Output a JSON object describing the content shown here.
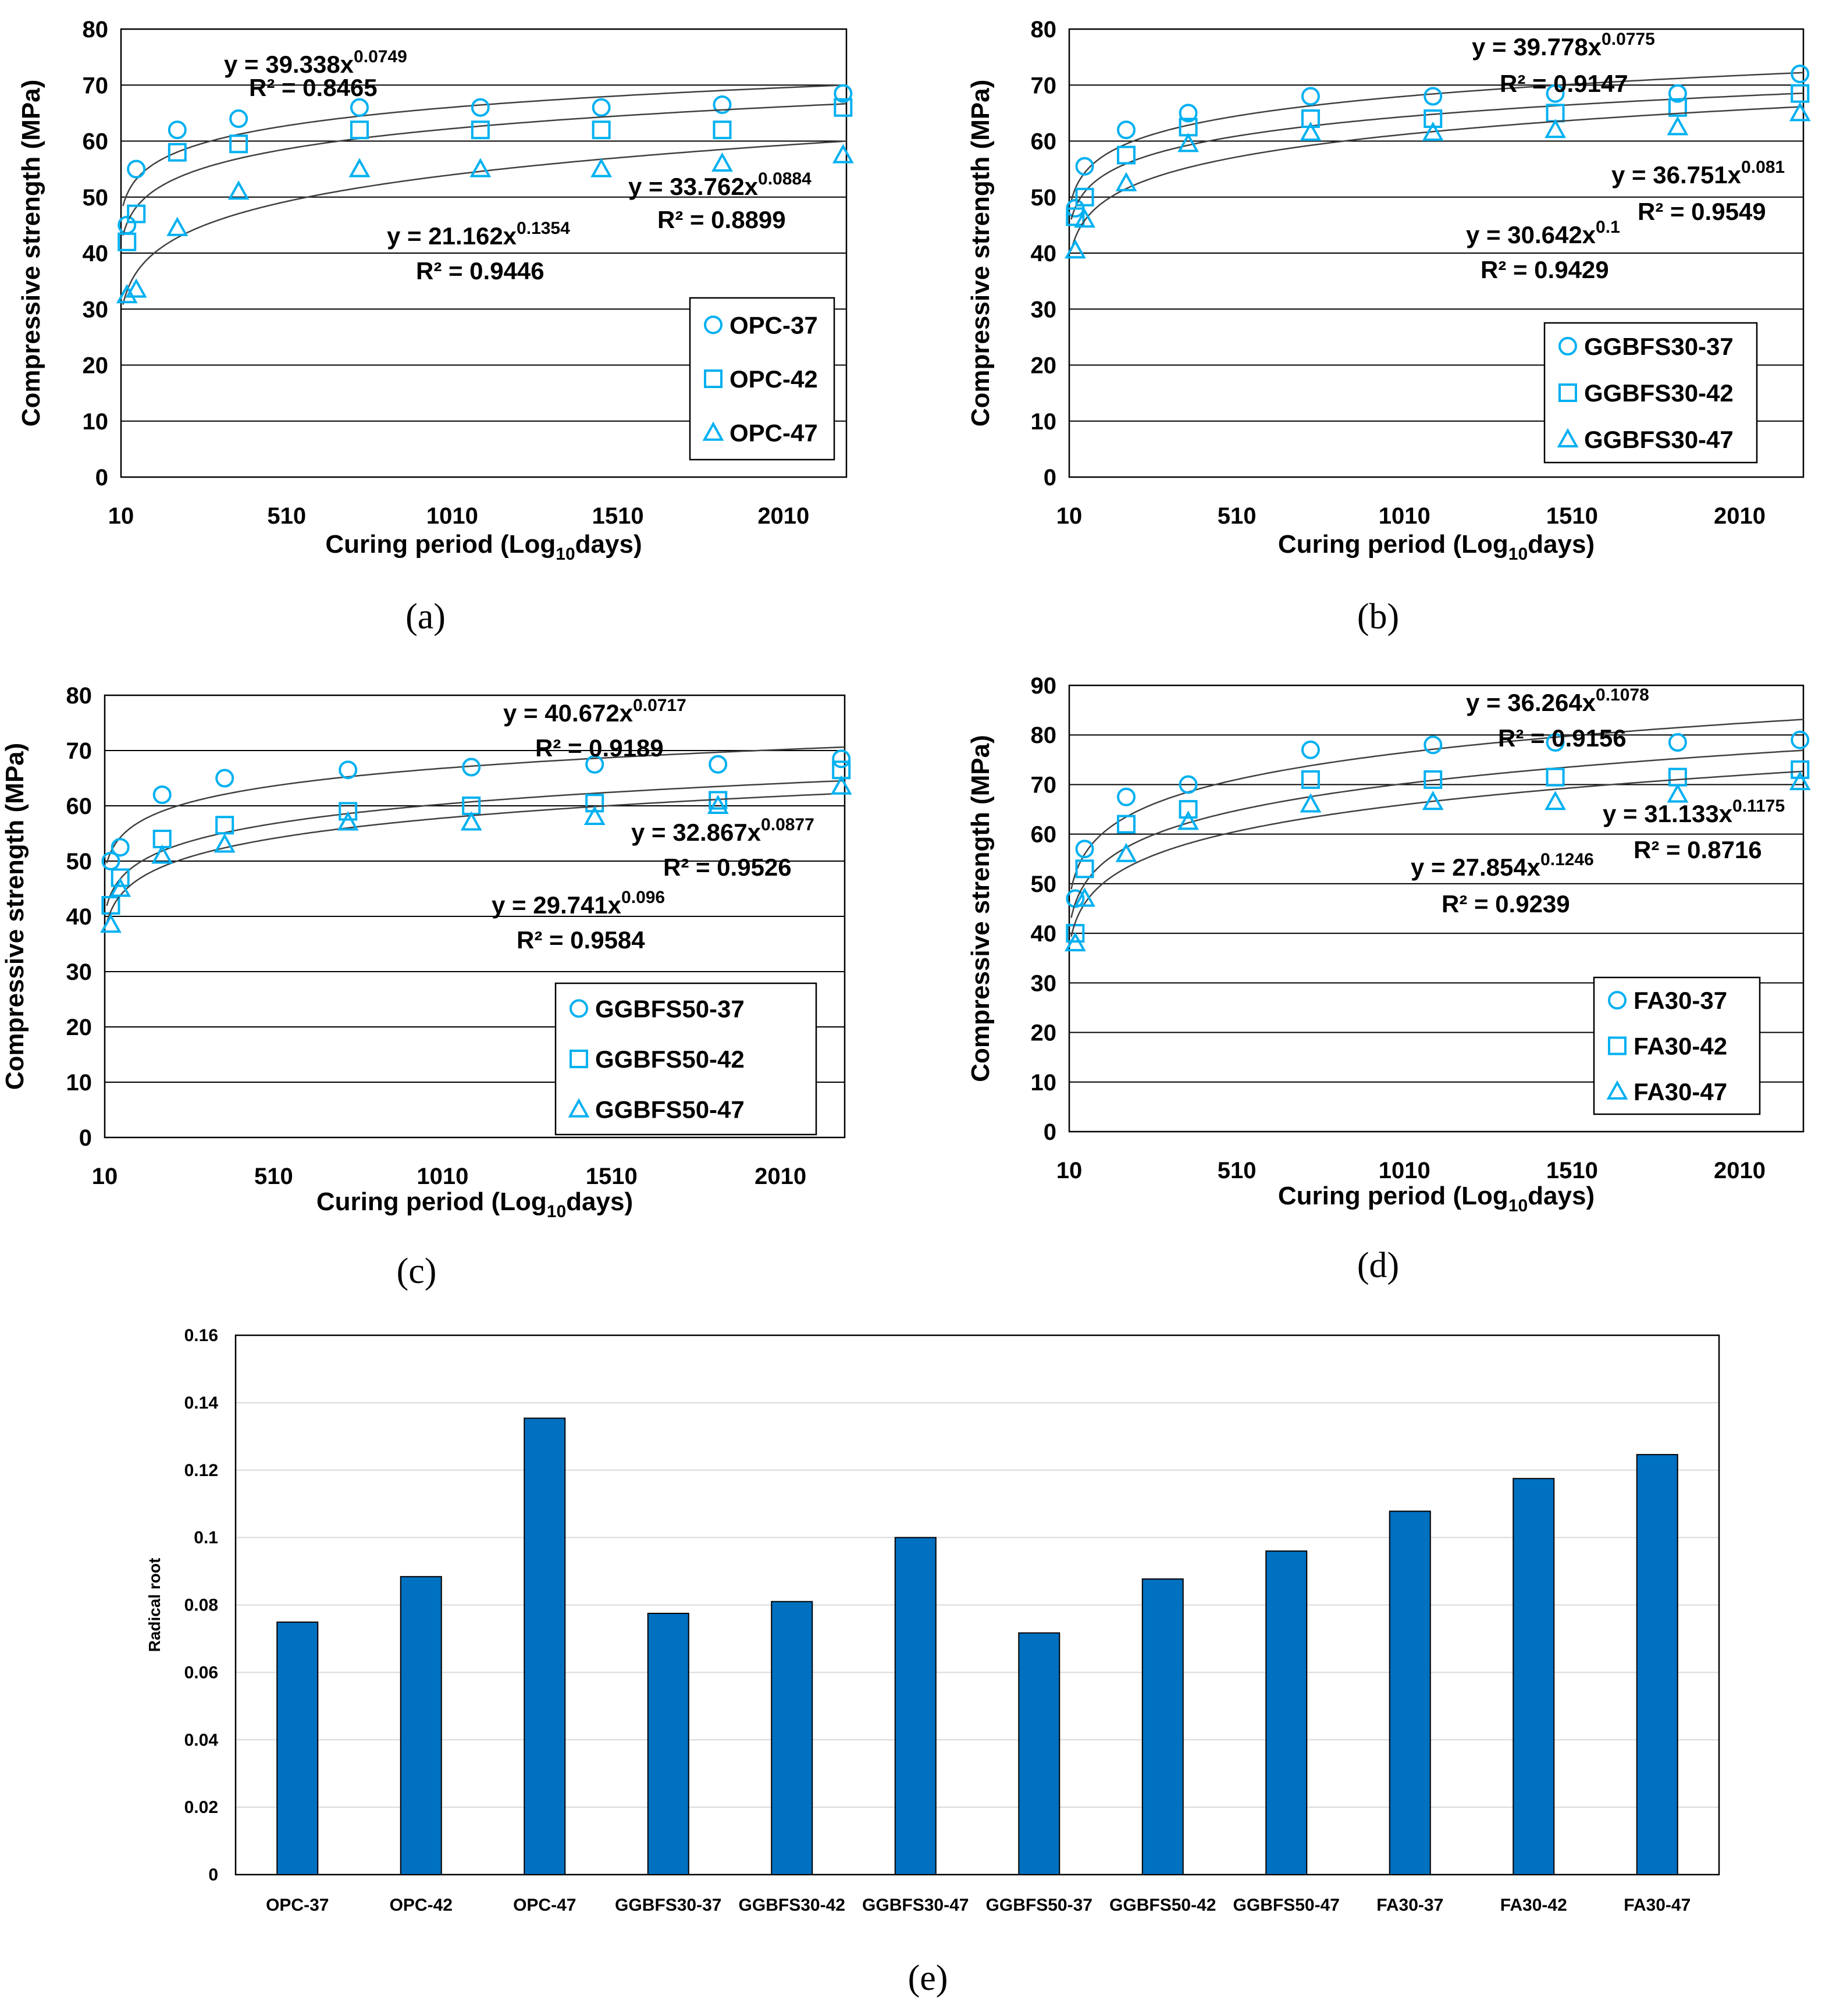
{
  "colors": {
    "marker": "#00B0F0",
    "bar": "#0070C0",
    "curve": "#404040",
    "grid": "#000000"
  },
  "chart_data": [
    {
      "type": "scatter",
      "caption_letter": "a",
      "ylabel": "Compressive strength (MPa)",
      "xlabel_pre": "Curing period (Log",
      "xlabel_sub": "10",
      "xlabel_post": "days)",
      "xlim": [
        10,
        2200
      ],
      "ylim": [
        0,
        80
      ],
      "xticks": [
        10,
        510,
        1010,
        1510,
        2010
      ],
      "yticks": [
        0,
        10,
        20,
        30,
        40,
        50,
        60,
        70,
        80
      ],
      "grid": true,
      "legend_position": "bottom-right",
      "series": [
        {
          "name": "OPC-37",
          "marker": "circle",
          "points": [
            [
              28,
              45
            ],
            [
              56,
              55
            ],
            [
              180,
              62
            ],
            [
              365,
              64
            ],
            [
              730,
              66
            ],
            [
              1095,
              66
            ],
            [
              1460,
              66
            ],
            [
              1825,
              66.5
            ],
            [
              2190,
              68.5
            ]
          ],
          "fit": {
            "a": 39.338,
            "b": 0.0749,
            "eq_pre": "y = 39.338x",
            "eq_exp": "0.0749",
            "r2": "R² = 0.8465"
          }
        },
        {
          "name": "OPC-42",
          "marker": "square",
          "points": [
            [
              28,
              42
            ],
            [
              56,
              47
            ],
            [
              180,
              58
            ],
            [
              365,
              59.5
            ],
            [
              730,
              62
            ],
            [
              1095,
              62
            ],
            [
              1460,
              62
            ],
            [
              1825,
              62
            ],
            [
              2190,
              66
            ]
          ],
          "fit": {
            "a": 33.762,
            "b": 0.0884,
            "eq_pre": "y = 33.762x",
            "eq_exp": "0.0884",
            "r2": "R² = 0.8899"
          }
        },
        {
          "name": "OPC-47",
          "marker": "triangle",
          "points": [
            [
              28,
              32.5
            ],
            [
              56,
              33.5
            ],
            [
              180,
              44.5
            ],
            [
              365,
              51
            ],
            [
              730,
              55
            ],
            [
              1095,
              55
            ],
            [
              1460,
              55
            ],
            [
              1825,
              56
            ],
            [
              2190,
              57.5
            ]
          ],
          "fit": {
            "a": 21.162,
            "b": 0.1354,
            "eq_pre": "y = 21.162x",
            "eq_exp": "0.1354",
            "r2": "R² = 0.9446"
          }
        }
      ]
    },
    {
      "type": "scatter",
      "caption_letter": "b",
      "ylabel": "Compressive strength (MPa)",
      "xlabel_pre": "Curing period (Log",
      "xlabel_sub": "10",
      "xlabel_post": "days)",
      "xlim": [
        10,
        2200
      ],
      "ylim": [
        0,
        80
      ],
      "xticks": [
        10,
        510,
        1010,
        1510,
        2010
      ],
      "yticks": [
        0,
        10,
        20,
        30,
        40,
        50,
        60,
        70,
        80
      ],
      "grid": true,
      "legend_position": "bottom-right",
      "series": [
        {
          "name": "GGBFS30-37",
          "marker": "circle",
          "points": [
            [
              28,
              48
            ],
            [
              56,
              55.5
            ],
            [
              180,
              62
            ],
            [
              365,
              65
            ],
            [
              730,
              68
            ],
            [
              1095,
              68
            ],
            [
              1460,
              68.5
            ],
            [
              1825,
              68.5
            ],
            [
              2190,
              72
            ]
          ],
          "fit": {
            "a": 39.778,
            "b": 0.0775,
            "eq_pre": "y = 39.778x",
            "eq_exp": "0.0775",
            "r2": "R² = 0.9147"
          }
        },
        {
          "name": "GGBFS30-42",
          "marker": "square",
          "points": [
            [
              28,
              46.5
            ],
            [
              56,
              50
            ],
            [
              180,
              57.5
            ],
            [
              365,
              62.5
            ],
            [
              730,
              64
            ],
            [
              1095,
              64
            ],
            [
              1460,
              65
            ],
            [
              1825,
              66
            ],
            [
              2190,
              68.5
            ]
          ],
          "fit": {
            "a": 36.751,
            "b": 0.081,
            "eq_pre": "y = 36.751x",
            "eq_exp": "0.081",
            "r2": "R² = 0.9549"
          }
        },
        {
          "name": "GGBFS30-47",
          "marker": "triangle",
          "points": [
            [
              28,
              40.5
            ],
            [
              56,
              46
            ],
            [
              180,
              52.5
            ],
            [
              365,
              59.5
            ],
            [
              730,
              61.5
            ],
            [
              1095,
              61.5
            ],
            [
              1460,
              62
            ],
            [
              1825,
              62.5
            ],
            [
              2190,
              65
            ]
          ],
          "fit": {
            "a": 30.642,
            "b": 0.1,
            "eq_pre": "y = 30.642x",
            "eq_exp": "0.1",
            "r2": "R² = 0.9429"
          }
        }
      ]
    },
    {
      "type": "scatter",
      "caption_letter": "c",
      "ylabel": "Compressive strength (MPa)",
      "xlabel_pre": "Curing period (Log",
      "xlabel_sub": "10",
      "xlabel_post": "days)",
      "xlim": [
        10,
        2200
      ],
      "ylim": [
        0,
        80
      ],
      "xticks": [
        10,
        510,
        1010,
        1510,
        2010
      ],
      "yticks": [
        0,
        10,
        20,
        30,
        40,
        50,
        60,
        70,
        80
      ],
      "grid": true,
      "legend_position": "bottom-right",
      "series": [
        {
          "name": "GGBFS50-37",
          "marker": "circle",
          "points": [
            [
              28,
              50
            ],
            [
              56,
              52.5
            ],
            [
              180,
              62
            ],
            [
              365,
              65
            ],
            [
              730,
              66.5
            ],
            [
              1095,
              67
            ],
            [
              1460,
              67.5
            ],
            [
              1825,
              67.5
            ],
            [
              2190,
              68.5
            ]
          ],
          "fit": {
            "a": 40.672,
            "b": 0.0717,
            "eq_pre": "y = 40.672x",
            "eq_exp": "0.0717",
            "r2": "R² = 0.9189"
          }
        },
        {
          "name": "GGBFS50-42",
          "marker": "square",
          "points": [
            [
              28,
              42
            ],
            [
              56,
              47
            ],
            [
              180,
              54
            ],
            [
              365,
              56.5
            ],
            [
              730,
              59
            ],
            [
              1095,
              60
            ],
            [
              1460,
              60.5
            ],
            [
              1825,
              61
            ],
            [
              2190,
              66.5
            ]
          ],
          "fit": {
            "a": 32.867,
            "b": 0.0877,
            "eq_pre": "y = 32.867x",
            "eq_exp": "0.0877",
            "r2": "R² = 0.9526"
          }
        },
        {
          "name": "GGBFS50-47",
          "marker": "triangle",
          "points": [
            [
              28,
              38.5
            ],
            [
              56,
              45
            ],
            [
              180,
              51
            ],
            [
              365,
              53
            ],
            [
              730,
              57
            ],
            [
              1095,
              57
            ],
            [
              1460,
              58
            ],
            [
              1825,
              60
            ],
            [
              2190,
              63.5
            ]
          ],
          "fit": {
            "a": 29.741,
            "b": 0.096,
            "eq_pre": "y = 29.741x",
            "eq_exp": "0.096",
            "r2": "R² = 0.9584"
          }
        }
      ]
    },
    {
      "type": "scatter",
      "caption_letter": "d",
      "ylabel": "Compressive strength (MPa)",
      "xlabel_pre": "Curing period (Log",
      "xlabel_sub": "10",
      "xlabel_post": "days)",
      "xlim": [
        10,
        2200
      ],
      "ylim": [
        0,
        90
      ],
      "xticks": [
        10,
        510,
        1010,
        1510,
        2010
      ],
      "yticks": [
        0,
        10,
        20,
        30,
        40,
        50,
        60,
        70,
        80,
        90
      ],
      "grid": true,
      "legend_position": "bottom-right",
      "series": [
        {
          "name": "FA30-37",
          "marker": "circle",
          "points": [
            [
              28,
              47
            ],
            [
              56,
              57
            ],
            [
              180,
              67.5
            ],
            [
              365,
              70
            ],
            [
              730,
              77
            ],
            [
              1095,
              78
            ],
            [
              1460,
              78.5
            ],
            [
              1825,
              78.5
            ],
            [
              2190,
              79
            ]
          ],
          "fit": {
            "a": 36.264,
            "b": 0.1078,
            "eq_pre": "y = 36.264x",
            "eq_exp": "0.1078",
            "r2": "R² = 0.9156"
          }
        },
        {
          "name": "FA30-42",
          "marker": "square",
          "points": [
            [
              28,
              40
            ],
            [
              56,
              53
            ],
            [
              180,
              62
            ],
            [
              365,
              65
            ],
            [
              730,
              71
            ],
            [
              1095,
              71
            ],
            [
              1460,
              71.5
            ],
            [
              1825,
              71.5
            ],
            [
              2190,
              73
            ]
          ],
          "fit": {
            "a": 31.133,
            "b": 0.1175,
            "eq_pre": "y = 31.133x",
            "eq_exp": "0.1175",
            "r2": "R² = 0.8716"
          }
        },
        {
          "name": "FA30-47",
          "marker": "triangle",
          "points": [
            [
              28,
              38
            ],
            [
              56,
              47
            ],
            [
              180,
              56
            ],
            [
              365,
              62.5
            ],
            [
              730,
              66
            ],
            [
              1095,
              66.5
            ],
            [
              1460,
              66.5
            ],
            [
              1825,
              68
            ],
            [
              2190,
              70.5
            ]
          ],
          "fit": {
            "a": 27.854,
            "b": 0.1246,
            "eq_pre": "y = 27.854x",
            "eq_exp": "0.1246",
            "r2": "R² = 0.9239"
          }
        }
      ]
    },
    {
      "type": "bar",
      "caption_letter": "e",
      "ylabel": "Radical root",
      "ylim": [
        0,
        0.16
      ],
      "yticks": [
        0,
        0.02,
        0.04,
        0.06,
        0.08,
        0.1,
        0.12,
        0.14,
        0.16
      ],
      "grid": true,
      "categories": [
        "OPC-37",
        "OPC-42",
        "OPC-47",
        "GGBFS30-37",
        "GGBFS30-42",
        "GGBFS30-47",
        "GGBFS50-37",
        "GGBFS50-42",
        "GGBFS50-47",
        "FA30-37",
        "FA30-42",
        "FA30-47"
      ],
      "values": [
        0.0749,
        0.0884,
        0.1354,
        0.0775,
        0.081,
        0.1,
        0.0717,
        0.0877,
        0.096,
        0.1078,
        0.1175,
        0.1246
      ]
    }
  ]
}
